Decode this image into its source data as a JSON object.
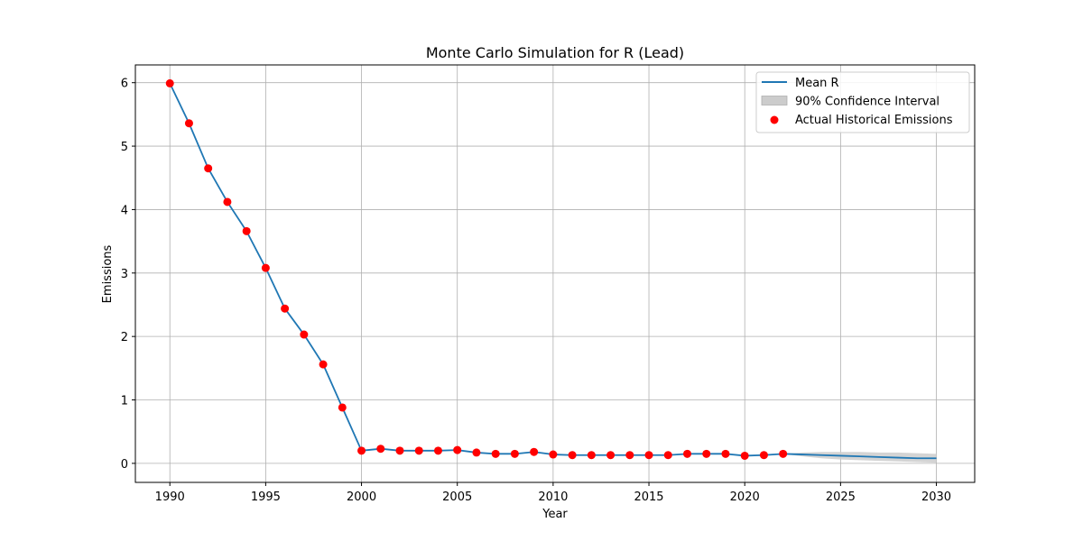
{
  "chart_data": {
    "type": "line",
    "title": "Monte Carlo Simulation for R (Lead)",
    "xlabel": "Year",
    "ylabel": "Emissions",
    "xlim": [
      1988.2,
      2032.0
    ],
    "ylim": [
      -0.3,
      6.28
    ],
    "xticks": [
      1990,
      1995,
      2000,
      2005,
      2010,
      2015,
      2020,
      2025,
      2030
    ],
    "yticks": [
      0,
      1,
      2,
      3,
      4,
      5,
      6
    ],
    "grid": true,
    "legend_position": "top-right",
    "colors": {
      "mean_line": "#1f77b4",
      "ci_fill": "#cccccc",
      "historical_points": "#ff0000"
    },
    "legend": [
      {
        "label": "Mean R",
        "kind": "line"
      },
      {
        "label": "90% Confidence Interval",
        "kind": "patch"
      },
      {
        "label": "Actual Historical Emissions",
        "kind": "marker"
      }
    ],
    "mean_series": {
      "name": "Mean R",
      "x": [
        1990,
        1991,
        1992,
        1993,
        1994,
        1995,
        1996,
        1997,
        1998,
        1999,
        2000,
        2001,
        2002,
        2003,
        2004,
        2005,
        2006,
        2007,
        2008,
        2009,
        2010,
        2011,
        2012,
        2013,
        2014,
        2015,
        2016,
        2017,
        2018,
        2019,
        2020,
        2021,
        2022,
        2023,
        2024,
        2025,
        2026,
        2027,
        2028,
        2029,
        2030
      ],
      "y": [
        5.99,
        5.36,
        4.65,
        4.12,
        3.66,
        3.08,
        2.44,
        2.03,
        1.56,
        0.88,
        0.2,
        0.23,
        0.2,
        0.2,
        0.2,
        0.21,
        0.17,
        0.15,
        0.15,
        0.18,
        0.14,
        0.13,
        0.13,
        0.13,
        0.13,
        0.13,
        0.13,
        0.15,
        0.15,
        0.15,
        0.12,
        0.13,
        0.15,
        0.14,
        0.13,
        0.12,
        0.11,
        0.1,
        0.09,
        0.08,
        0.08
      ]
    },
    "confidence_interval": {
      "name": "90% Confidence Interval",
      "x": [
        2022,
        2023,
        2024,
        2025,
        2026,
        2027,
        2028,
        2029,
        2030
      ],
      "lower": [
        0.15,
        0.11,
        0.08,
        0.06,
        0.05,
        0.04,
        0.03,
        0.02,
        0.01
      ],
      "upper": [
        0.15,
        0.17,
        0.18,
        0.18,
        0.18,
        0.17,
        0.17,
        0.16,
        0.15
      ]
    },
    "historical": {
      "name": "Actual Historical Emissions",
      "x": [
        1990,
        1991,
        1992,
        1993,
        1994,
        1995,
        1996,
        1997,
        1998,
        1999,
        2000,
        2001,
        2002,
        2003,
        2004,
        2005,
        2006,
        2007,
        2008,
        2009,
        2010,
        2011,
        2012,
        2013,
        2014,
        2015,
        2016,
        2017,
        2018,
        2019,
        2020,
        2021,
        2022
      ],
      "y": [
        5.99,
        5.36,
        4.65,
        4.12,
        3.66,
        3.08,
        2.44,
        2.03,
        1.56,
        0.88,
        0.2,
        0.23,
        0.2,
        0.2,
        0.2,
        0.21,
        0.17,
        0.15,
        0.15,
        0.18,
        0.14,
        0.13,
        0.13,
        0.13,
        0.13,
        0.13,
        0.13,
        0.15,
        0.15,
        0.15,
        0.12,
        0.13,
        0.15
      ]
    }
  }
}
